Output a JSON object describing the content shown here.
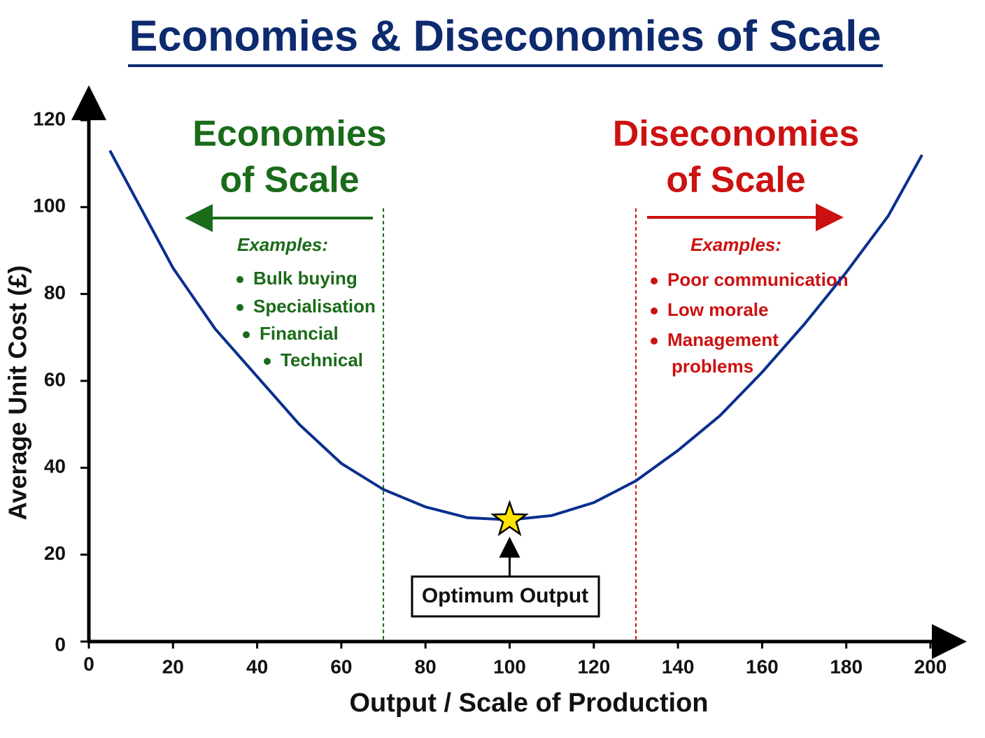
{
  "chart_data": {
    "type": "line",
    "title": "Economies & Diseconomies of Scale",
    "x_label": "Output / Scale of Production",
    "y_label": "Average Unit Cost (£)",
    "x": [
      5,
      10,
      20,
      30,
      40,
      50,
      60,
      70,
      80,
      90,
      100,
      110,
      120,
      130,
      140,
      150,
      160,
      170,
      180,
      190,
      198
    ],
    "series": [
      {
        "name": "Average Unit Cost",
        "color": "#0a2f8f",
        "values": [
          113,
          104,
          86,
          72,
          61,
          50,
          41,
          35,
          31,
          28.5,
          28,
          29,
          32,
          37,
          44,
          52,
          62,
          73,
          85,
          98,
          112
        ]
      }
    ],
    "xlim": [
      0,
      200
    ],
    "ylim": [
      0,
      120
    ],
    "xticks": [
      0,
      20,
      40,
      60,
      80,
      100,
      120,
      140,
      160,
      180,
      200
    ],
    "yticks": [
      0,
      20,
      40,
      60,
      80,
      100,
      120
    ],
    "optimum": {
      "x": 100,
      "y": 28,
      "label": "Optimum Output",
      "color": "#ffe300"
    },
    "regions": [
      {
        "boundary": 70,
        "color": "#1a6b1a",
        "title": [
          "Economies",
          "of Scale"
        ],
        "examples_label": "Examples:",
        "examples": [
          [
            "Bulk buying"
          ],
          [
            "Specialisation"
          ],
          [
            "Financial"
          ],
          [
            "Technical"
          ]
        ]
      },
      {
        "boundary": 130,
        "color": "#cc1111",
        "title": [
          "Diseconomies",
          "of Scale"
        ],
        "examples_label": "Examples:",
        "examples": [
          [
            "Poor communication"
          ],
          [
            "Low morale"
          ],
          [
            "Management",
            "problems"
          ]
        ]
      }
    ]
  }
}
